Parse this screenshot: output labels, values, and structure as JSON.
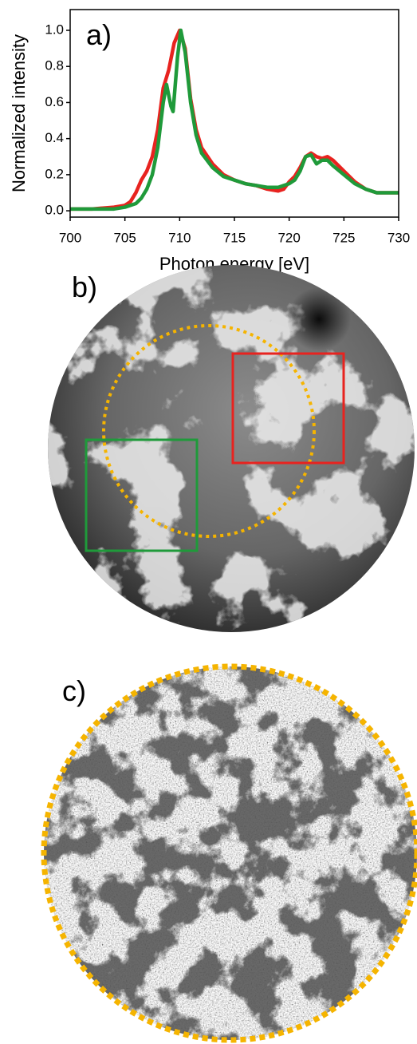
{
  "chart_data": {
    "type": "line",
    "panel_label": "a)",
    "x_label": "Photon energy [eV]",
    "y_label": "Normalized intensity",
    "xlim": [
      700,
      730
    ],
    "xticks": [
      700,
      705,
      710,
      715,
      720,
      725,
      730
    ],
    "ylim": [
      -0.035,
      1.115
    ],
    "yticks": [
      {
        "value": 0,
        "label": "0.0"
      },
      0.2,
      0.4,
      0.6,
      0.8,
      {
        "value": 1,
        "label": "1.0"
      }
    ],
    "series": [
      {
        "color": "#e8231f",
        "x": [
          700,
          702,
          704,
          705,
          705.5,
          706,
          706.5,
          707,
          707.5,
          708,
          708.5,
          709,
          709.5,
          710,
          710.5,
          711,
          711.5,
          712,
          713,
          714,
          715,
          716,
          717,
          718,
          719,
          719.5,
          720,
          720.5,
          721,
          721.5,
          722,
          722.5,
          723,
          723.5,
          724,
          725,
          726,
          727,
          728,
          730
        ],
        "values": [
          0.01,
          0.01,
          0.02,
          0.03,
          0.05,
          0.1,
          0.17,
          0.22,
          0.3,
          0.45,
          0.68,
          0.78,
          0.93,
          1.0,
          0.9,
          0.62,
          0.45,
          0.35,
          0.26,
          0.2,
          0.17,
          0.15,
          0.14,
          0.12,
          0.11,
          0.12,
          0.16,
          0.19,
          0.24,
          0.3,
          0.32,
          0.3,
          0.29,
          0.3,
          0.28,
          0.22,
          0.16,
          0.12,
          0.1,
          0.1
        ]
      },
      {
        "color": "#1f9a3a",
        "x": [
          700,
          702,
          704,
          705,
          706,
          706.5,
          707,
          707.5,
          708,
          708.5,
          708.8,
          709.2,
          709.4,
          709.8,
          710.1,
          710.5,
          711,
          711.5,
          712,
          713,
          714,
          715,
          716,
          717,
          718,
          719,
          720,
          720.5,
          721,
          721.5,
          722,
          722.5,
          723,
          723.5,
          724,
          725,
          726,
          727,
          728,
          730
        ],
        "values": [
          0.01,
          0.01,
          0.01,
          0.02,
          0.04,
          0.07,
          0.12,
          0.2,
          0.35,
          0.6,
          0.7,
          0.58,
          0.55,
          0.85,
          1.0,
          0.88,
          0.6,
          0.42,
          0.32,
          0.24,
          0.19,
          0.17,
          0.15,
          0.14,
          0.13,
          0.13,
          0.15,
          0.17,
          0.22,
          0.3,
          0.31,
          0.26,
          0.28,
          0.28,
          0.25,
          0.2,
          0.15,
          0.12,
          0.1,
          0.1
        ]
      }
    ]
  },
  "image_panels": [
    {
      "label": "b)"
    },
    {
      "label": "c)"
    }
  ]
}
